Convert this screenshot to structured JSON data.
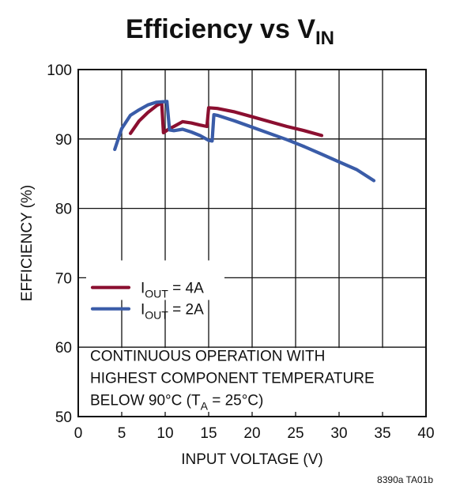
{
  "chart_data": {
    "type": "line",
    "title": "Efficiency vs V",
    "title_subscript": "IN",
    "xlabel": "INPUT VOLTAGE (V)",
    "ylabel": "EFFICIENCY (%)",
    "xlim": [
      0,
      40
    ],
    "ylim": [
      50,
      100
    ],
    "x_ticks": [
      0,
      5,
      10,
      15,
      20,
      25,
      30,
      35,
      40
    ],
    "y_ticks": [
      50,
      60,
      70,
      80,
      90,
      100
    ],
    "grid": true,
    "legend_position": "center-left",
    "series": [
      {
        "name_main": "I",
        "name_sub": "OUT",
        "name_rest": " = 4A",
        "color": "#8b0f30",
        "points": [
          [
            6.0,
            90.8
          ],
          [
            7.0,
            92.6
          ],
          [
            8.0,
            93.8
          ],
          [
            9.0,
            94.8
          ],
          [
            9.6,
            95.2
          ],
          [
            9.8,
            90.9
          ],
          [
            10.5,
            91.5
          ],
          [
            11.0,
            91.8
          ],
          [
            12.0,
            92.5
          ],
          [
            13.0,
            92.3
          ],
          [
            14.0,
            92.0
          ],
          [
            14.8,
            91.8
          ],
          [
            15.0,
            94.5
          ],
          [
            16.0,
            94.4
          ],
          [
            18.0,
            93.9
          ],
          [
            20.0,
            93.2
          ],
          [
            22.0,
            92.5
          ],
          [
            24.0,
            91.8
          ],
          [
            26.0,
            91.2
          ],
          [
            28.0,
            90.5
          ]
        ]
      },
      {
        "name_main": "I",
        "name_sub": "OUT",
        "name_rest": " = 2A",
        "color": "#3a5ca8",
        "points": [
          [
            4.2,
            88.5
          ],
          [
            5.0,
            91.5
          ],
          [
            6.0,
            93.4
          ],
          [
            7.0,
            94.2
          ],
          [
            8.0,
            94.9
          ],
          [
            9.0,
            95.3
          ],
          [
            10.2,
            95.4
          ],
          [
            10.5,
            91.3
          ],
          [
            11.0,
            91.2
          ],
          [
            12.0,
            91.4
          ],
          [
            13.0,
            91.0
          ],
          [
            14.0,
            90.5
          ],
          [
            15.0,
            89.8
          ],
          [
            15.4,
            89.7
          ],
          [
            15.6,
            93.5
          ],
          [
            16.0,
            93.4
          ],
          [
            18.0,
            92.6
          ],
          [
            20.0,
            91.7
          ],
          [
            22.0,
            90.8
          ],
          [
            24.0,
            89.9
          ],
          [
            26.0,
            88.9
          ],
          [
            28.0,
            87.8
          ],
          [
            30.0,
            86.7
          ],
          [
            32.0,
            85.6
          ],
          [
            34.0,
            84.0
          ]
        ]
      }
    ],
    "annotation_lines": [
      {
        "parts": [
          {
            "text": "CONTINUOUS OPERATION WITH",
            "sub": false
          }
        ]
      },
      {
        "parts": [
          {
            "text": "HIGHEST COMPONENT TEMPERATURE",
            "sub": false
          }
        ]
      },
      {
        "parts": [
          {
            "text": "BELOW 90°C (T",
            "sub": false
          },
          {
            "text": "A",
            "sub": true
          },
          {
            "text": " = 25°C)",
            "sub": false
          }
        ]
      }
    ],
    "figure_code": "8390a TA01b"
  }
}
